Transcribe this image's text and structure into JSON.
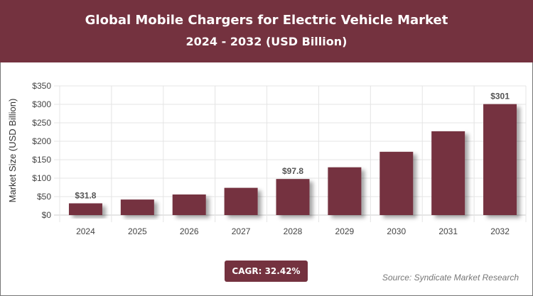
{
  "header": {
    "title": "Global Mobile Chargers for Electric Vehicle Market",
    "subtitle": "2024 - 2032 (USD Billion)"
  },
  "chart_data": {
    "type": "bar",
    "title": "Global Mobile Chargers for Electric Vehicle Market",
    "subtitle": "2024 - 2032 (USD Billion)",
    "ylabel": "Market Size (USD Billion)",
    "xlabel": "",
    "categories": [
      "2024",
      "2025",
      "2026",
      "2027",
      "2028",
      "2029",
      "2030",
      "2031",
      "2032"
    ],
    "values": [
      31.8,
      42.1,
      55.8,
      73.8,
      97.8,
      129.5,
      171.5,
      227.1,
      300.7
    ],
    "data_labels": {
      "0": "$31.8",
      "4": "$97.8",
      "8": "$301"
    },
    "ylim": [
      0,
      350
    ],
    "yticks": [
      "$0",
      "$50",
      "$100",
      "$150",
      "$200",
      "$250",
      "$300",
      "$350"
    ],
    "grid": true,
    "bar_color": "#74323f"
  },
  "footer": {
    "cagr": "CAGR: 32.42%",
    "source": "Source: Syndicate Market Research"
  }
}
